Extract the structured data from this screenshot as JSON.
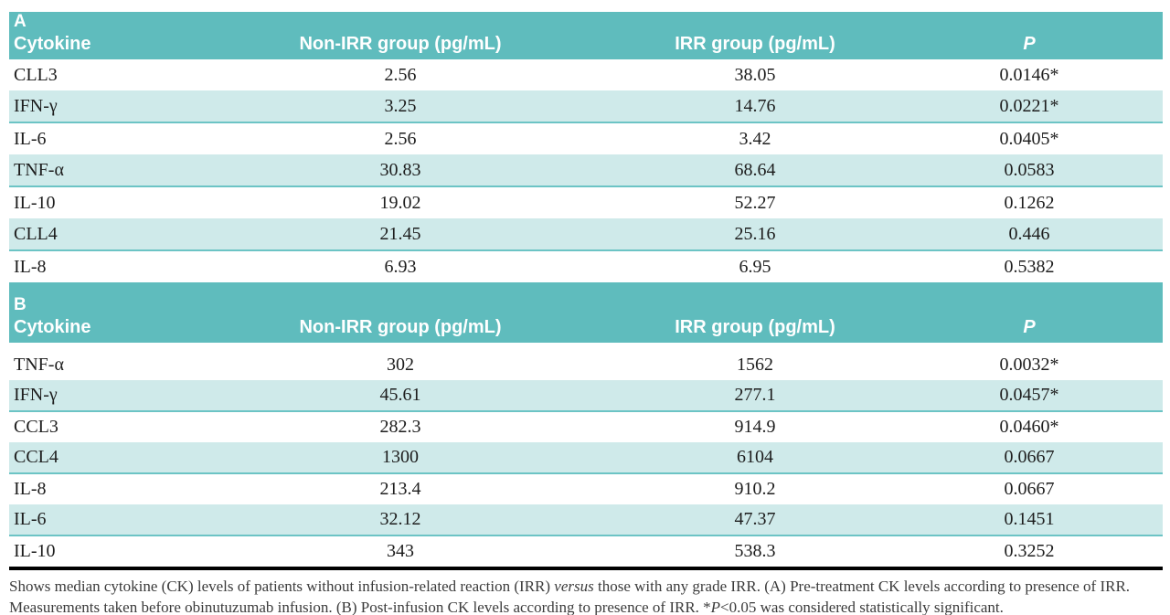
{
  "colors": {
    "header_teal": "#5fbcbd",
    "row_teal": "#cfeaea",
    "row_border_teal": "#6cc4c5",
    "rule_black": "#000000",
    "header_text": "#ffffff",
    "body_text": "#1d1d1d",
    "footnote_text": "#3b3b3b"
  },
  "tables": [
    {
      "section_label": "A",
      "columns": [
        "Cytokine",
        "Non-IRR group (pg/mL)",
        "IRR group (pg/mL)",
        "P"
      ],
      "rows": [
        {
          "cytokine": "CLL3",
          "non_irr": "2.56",
          "irr": "38.05",
          "p": "0.0146*"
        },
        {
          "cytokine": "IFN-γ",
          "non_irr": "3.25",
          "irr": "14.76",
          "p": "0.0221*"
        },
        {
          "cytokine": "IL-6",
          "non_irr": "2.56",
          "irr": "3.42",
          "p": "0.0405*"
        },
        {
          "cytokine": "TNF-α",
          "non_irr": "30.83",
          "irr": "68.64",
          "p": "0.0583"
        },
        {
          "cytokine": "IL-10",
          "non_irr": "19.02",
          "irr": "52.27",
          "p": "0.1262"
        },
        {
          "cytokine": "CLL4",
          "non_irr": "21.45",
          "irr": "25.16",
          "p": "0.446"
        },
        {
          "cytokine": "IL-8",
          "non_irr": "6.93",
          "irr": "6.95",
          "p": "0.5382"
        }
      ]
    },
    {
      "section_label": "B",
      "columns": [
        "Cytokine",
        "Non-IRR group (pg/mL)",
        "IRR group (pg/mL)",
        "P"
      ],
      "rows": [
        {
          "cytokine": "TNF-α",
          "non_irr": "302",
          "irr": "1562",
          "p": "0.0032*"
        },
        {
          "cytokine": "IFN-γ",
          "non_irr": "45.61",
          "irr": "277.1",
          "p": "0.0457*"
        },
        {
          "cytokine": "CCL3",
          "non_irr": "282.3",
          "irr": "914.9",
          "p": "0.0460*"
        },
        {
          "cytokine": "CCL4",
          "non_irr": "1300",
          "irr": "6104",
          "p": "0.0667"
        },
        {
          "cytokine": "IL-8",
          "non_irr": "213.4",
          "irr": "910.2",
          "p": "0.0667"
        },
        {
          "cytokine": "IL-6",
          "non_irr": "32.12",
          "irr": "47.37",
          "p": "0.1451"
        },
        {
          "cytokine": "IL-10",
          "non_irr": "343",
          "irr": "538.3",
          "p": "0.3252"
        }
      ]
    }
  ],
  "footnote": {
    "seg1": "Shows median cytokine (CK) levels of patients without infusion-related reaction (IRR) ",
    "versus_italic": "versus",
    "seg2": " those with any grade IRR. (A) Pre-treatment CK levels according to presence of IRR. Measurements taken before obinutuzumab infusion. (B) Post-infusion CK levels according to presence of IRR. *",
    "p_italic": "P",
    "seg3": "<0.05 was considered statistically significant."
  }
}
